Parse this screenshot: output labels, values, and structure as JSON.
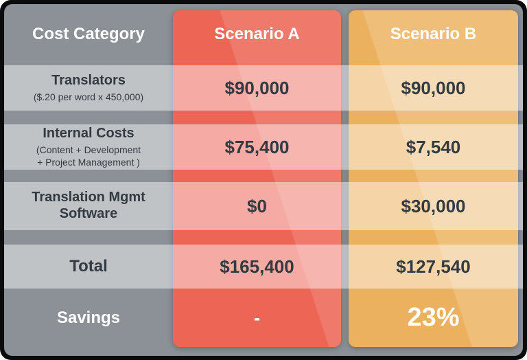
{
  "table": {
    "header": {
      "category": "Cost Category",
      "scenario_a": "Scenario A",
      "scenario_b": "Scenario B"
    },
    "rows": [
      {
        "id": "translators",
        "label": "Translators",
        "sublabel": "($.20 per word x 450,000)",
        "scenario_a": "$90,000",
        "scenario_b": "$90,000"
      },
      {
        "id": "internal-costs",
        "label": "Internal Costs",
        "sublabel": "(Content + Development\n+ Project Management )",
        "scenario_a": "$75,400",
        "scenario_b": "$7,540"
      },
      {
        "id": "translation-mgmt-software",
        "label": "Translation Mgmt\nSoftware",
        "scenario_a": "$0",
        "scenario_b": "$30,000"
      },
      {
        "id": "total",
        "label": "Total",
        "scenario_a": "$165,400",
        "scenario_b": "$127,540"
      },
      {
        "id": "savings",
        "label": "Savings",
        "scenario_a": "-",
        "scenario_b": "23%"
      }
    ]
  },
  "colors": {
    "border": "#0b0b0b",
    "frame_gray": "#8b9196",
    "scenario_a": "#ed6555",
    "scenario_b": "#ecb15e",
    "row_band": "rgba(255,255,255,0.46)",
    "text_dark": "#323a42",
    "text_light": "#ffffff"
  },
  "chart_data": {
    "type": "table",
    "title": "Cost comparison: Scenario A vs Scenario B",
    "columns": [
      "Cost Category",
      "Scenario A",
      "Scenario B"
    ],
    "rows": [
      [
        "Translators ($.20 per word x 450,000)",
        "$90,000",
        "$90,000"
      ],
      [
        "Internal Costs (Content + Development + Project Management )",
        "$75,400",
        "$7,540"
      ],
      [
        "Translation Mgmt Software",
        "$0",
        "$30,000"
      ],
      [
        "Total",
        "$165,400",
        "$127,540"
      ],
      [
        "Savings",
        "-",
        "23%"
      ]
    ],
    "savings_percent": 23
  }
}
